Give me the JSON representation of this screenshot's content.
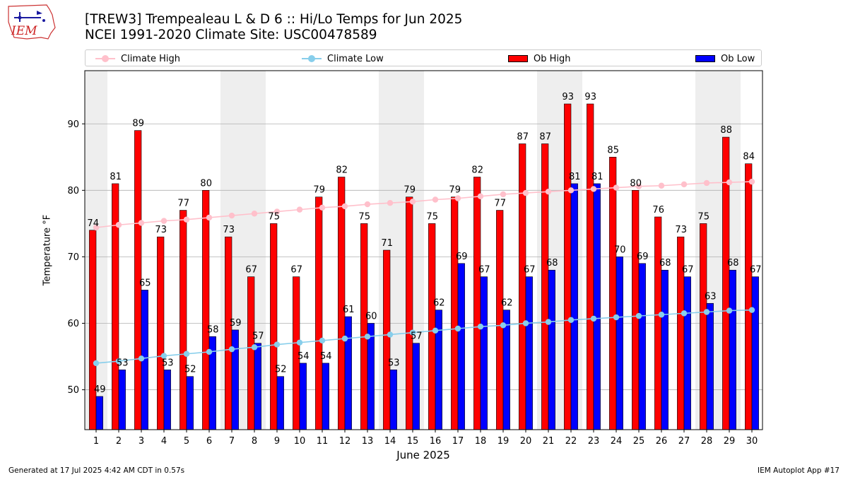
{
  "header": {
    "title_line1": "[TREW3] Trempealeau L & D 6 :: Hi/Lo Temps for Jun 2025",
    "title_line2": "NCEI 1991-2020 Climate Site: USC00478589",
    "logo_text": "IEM"
  },
  "legend": {
    "climate_high": "Climate High",
    "climate_low": "Climate Low",
    "ob_high": "Ob High",
    "ob_low": "Ob Low"
  },
  "colors": {
    "ob_high": "#ff0000",
    "ob_low": "#0000ff",
    "climate_high": "#ffc0cb",
    "climate_low": "#87ceeb",
    "weekend_shade": "#eeeeee",
    "grid": "#b0b0b0"
  },
  "footer": {
    "generated": "Generated at 17 Jul 2025 4:42 AM CDT in 0.57s",
    "app": "IEM Autoplot App #17"
  },
  "chart_data": {
    "type": "bar",
    "title": "[TREW3] Trempealeau L & D 6 :: Hi/Lo Temps for Jun 2025",
    "subtitle": "NCEI 1991-2020 Climate Site: USC00478589",
    "xlabel": "June 2025",
    "ylabel": "Temperature °F",
    "ylim": [
      44,
      98
    ],
    "yticks": [
      50,
      60,
      70,
      80,
      90
    ],
    "grid": true,
    "legend_position": "top",
    "categories": [
      "1",
      "2",
      "3",
      "4",
      "5",
      "6",
      "7",
      "8",
      "9",
      "10",
      "11",
      "12",
      "13",
      "14",
      "15",
      "16",
      "17",
      "18",
      "19",
      "20",
      "21",
      "22",
      "23",
      "24",
      "25",
      "26",
      "27",
      "28",
      "29",
      "30"
    ],
    "weekend_days": [
      1,
      7,
      8,
      14,
      15,
      21,
      22,
      28,
      29
    ],
    "series": [
      {
        "name": "Ob High",
        "type": "bar",
        "values": [
          74,
          81,
          89,
          73,
          77,
          80,
          73,
          67,
          75,
          67,
          79,
          82,
          75,
          71,
          79,
          75,
          79,
          82,
          77,
          87,
          87,
          93,
          93,
          85,
          80,
          76,
          73,
          75,
          88,
          84
        ]
      },
      {
        "name": "Ob Low",
        "type": "bar",
        "values": [
          49,
          53,
          65,
          53,
          52,
          58,
          59,
          57,
          52,
          54,
          54,
          61,
          60,
          53,
          57,
          62,
          69,
          67,
          62,
          67,
          68,
          81,
          81,
          70,
          69,
          68,
          67,
          63,
          68,
          67
        ]
      },
      {
        "name": "Climate High",
        "type": "line",
        "values": [
          74.4,
          74.8,
          75.1,
          75.4,
          75.6,
          75.9,
          76.2,
          76.5,
          76.8,
          77.1,
          77.4,
          77.6,
          77.9,
          78.1,
          78.3,
          78.6,
          78.8,
          79.1,
          79.4,
          79.6,
          79.8,
          80.0,
          80.2,
          80.4,
          80.6,
          80.7,
          80.9,
          81.1,
          81.2,
          81.3
        ]
      },
      {
        "name": "Climate Low",
        "type": "line",
        "values": [
          54.0,
          54.3,
          54.7,
          55.1,
          55.4,
          55.7,
          56.1,
          56.4,
          56.8,
          57.1,
          57.4,
          57.7,
          58.0,
          58.3,
          58.6,
          58.9,
          59.2,
          59.5,
          59.7,
          60.0,
          60.2,
          60.5,
          60.7,
          60.9,
          61.1,
          61.3,
          61.5,
          61.7,
          61.9,
          62.0
        ]
      }
    ]
  }
}
